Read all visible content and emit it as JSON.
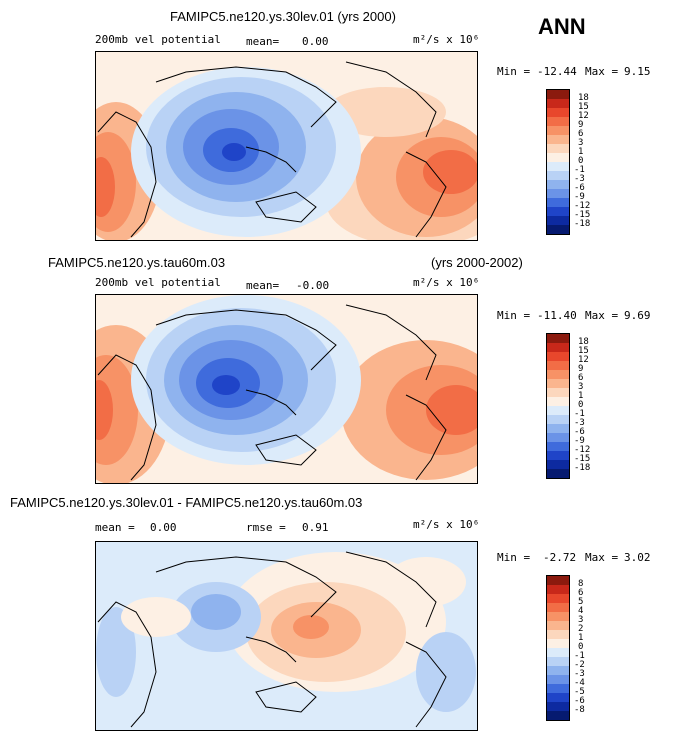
{
  "header": {
    "season": "ANN"
  },
  "panels": [
    {
      "title": "FAMIPC5.ne120.ys.30lev.01 (yrs 2000)",
      "title2": "",
      "field": "200mb vel potential",
      "stat1_label": "mean=",
      "stat1_value": "0.00",
      "stat2_label": "",
      "stat2_value": "",
      "units": "m²/s x 10⁶",
      "min_label": "Min =",
      "min_value": "-12.44",
      "max_label": "Max =",
      "max_value": "9.15",
      "levels": [
        "18",
        "15",
        "12",
        "9",
        "6",
        "3",
        "1",
        "0",
        "-1",
        "-3",
        "-6",
        "-9",
        "-12",
        "-15",
        "-18"
      ],
      "colors": [
        "#8b1a0e",
        "#c8281a",
        "#e8472c",
        "#f26d46",
        "#f79266",
        "#fab58e",
        "#fcd7bd",
        "#fdf0e4",
        "#dcebfa",
        "#b9d2f5",
        "#8fb3ee",
        "#6b93e7",
        "#3f6bdc",
        "#1f44c8",
        "#0d2aa0",
        "#061a70"
      ]
    },
    {
      "title": "FAMIPC5.ne120.ys.tau60m.03",
      "title2": "(yrs 2000-2002)",
      "field": "200mb vel potential",
      "stat1_label": "mean=",
      "stat1_value": "-0.00",
      "stat2_label": "",
      "stat2_value": "",
      "units": "m²/s x 10⁶",
      "min_label": "Min =",
      "min_value": "-11.40",
      "max_label": "Max =",
      "max_value": "9.69",
      "levels": [
        "18",
        "15",
        "12",
        "9",
        "6",
        "3",
        "1",
        "0",
        "-1",
        "-3",
        "-6",
        "-9",
        "-12",
        "-15",
        "-18"
      ],
      "colors": [
        "#8b1a0e",
        "#c8281a",
        "#e8472c",
        "#f26d46",
        "#f79266",
        "#fab58e",
        "#fcd7bd",
        "#fdf0e4",
        "#dcebfa",
        "#b9d2f5",
        "#8fb3ee",
        "#6b93e7",
        "#3f6bdc",
        "#1f44c8",
        "#0d2aa0",
        "#061a70"
      ]
    },
    {
      "title": "FAMIPC5.ne120.ys.30lev.01 - FAMIPC5.ne120.ys.tau60m.03",
      "title2": "",
      "field": "",
      "stat1_label": "mean =",
      "stat1_value": "0.00",
      "stat2_label": "rmse =",
      "stat2_value": "0.91",
      "units": "m²/s x 10⁶",
      "min_label": "Min =",
      "min_value": "-2.72",
      "max_label": "Max =",
      "max_value": "3.02",
      "levels": [
        "8",
        "6",
        "5",
        "4",
        "3",
        "2",
        "1",
        "0",
        "-1",
        "-2",
        "-3",
        "-4",
        "-5",
        "-6",
        "-8"
      ],
      "colors": [
        "#8b1a0e",
        "#c8281a",
        "#e8472c",
        "#f26d46",
        "#f79266",
        "#fab58e",
        "#fcd7bd",
        "#fdf0e4",
        "#dcebfa",
        "#b9d2f5",
        "#8fb3ee",
        "#6b93e7",
        "#3f6bdc",
        "#1f44c8",
        "#0d2aa0",
        "#061a70"
      ]
    }
  ]
}
